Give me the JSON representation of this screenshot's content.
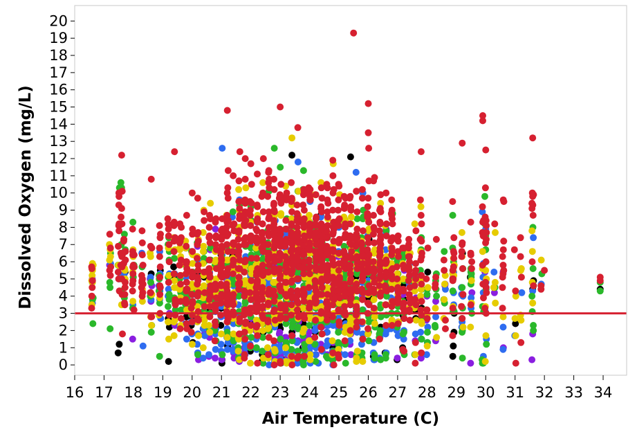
{
  "chart_data": {
    "type": "scatter",
    "title": "",
    "xlabel": "Air Temperature (C)",
    "ylabel": "Dissolved Oxygen (mg/L)",
    "xlim": [
      16,
      34.8
    ],
    "ylim": [
      -0.6,
      20.9
    ],
    "x_ticks": [
      "16",
      "17",
      "18",
      "19",
      "20",
      "21",
      "22",
      "23",
      "24",
      "25",
      "26",
      "27",
      "28",
      "29",
      "30",
      "31",
      "32",
      "33",
      "34"
    ],
    "y_ticks": [
      "0",
      "1",
      "2",
      "3",
      "4",
      "5",
      "6",
      "7",
      "8",
      "9",
      "10",
      "11",
      "12",
      "13",
      "14",
      "15",
      "16",
      "17",
      "18",
      "19",
      "20"
    ],
    "grid": false,
    "legend": "none",
    "reference_line": {
      "y": 3,
      "color": "#d62030"
    },
    "group_colors": [
      "#d62030",
      "#e6cc00",
      "#2ab82a",
      "#2e6cf0",
      "#8a1ee0",
      "#000000"
    ],
    "group_weights": [
      0.35,
      0.22,
      0.2,
      0.12,
      0.06,
      0.05
    ],
    "x_columns": [
      16.6,
      17.2,
      17.5,
      17.6,
      17.7,
      18.0,
      18.3,
      18.6,
      18.9,
      19.2,
      19.4,
      19.6,
      19.8,
      20.0,
      20.2,
      20.4,
      20.6,
      20.8,
      21.0,
      21.2,
      21.4,
      21.6,
      21.8,
      22.0,
      22.2,
      22.4,
      22.6,
      22.8,
      23.0,
      23.2,
      23.4,
      23.6,
      23.8,
      24.0,
      24.2,
      24.4,
      24.6,
      24.8,
      25.0,
      25.2,
      25.4,
      25.6,
      25.8,
      26.0,
      26.2,
      26.4,
      26.6,
      26.8,
      27.0,
      27.2,
      27.4,
      27.6,
      27.8,
      28.0,
      28.3,
      28.6,
      28.9,
      29.2,
      29.5,
      29.9,
      30.0,
      30.3,
      30.6,
      31.0,
      31.2,
      31.6,
      31.9,
      33.9
    ],
    "column_counts": [
      20,
      15,
      18,
      22,
      18,
      25,
      18,
      22,
      26,
      30,
      28,
      30,
      32,
      40,
      40,
      40,
      45,
      45,
      55,
      60,
      60,
      65,
      70,
      70,
      75,
      75,
      80,
      80,
      80,
      85,
      85,
      85,
      85,
      85,
      85,
      80,
      80,
      75,
      75,
      70,
      70,
      65,
      60,
      60,
      55,
      50,
      45,
      45,
      40,
      35,
      30,
      30,
      35,
      20,
      15,
      15,
      35,
      25,
      20,
      20,
      30,
      8,
      15,
      8,
      8,
      25,
      5,
      3
    ],
    "column_centers": [
      4.5,
      5.5,
      6.0,
      6.5,
      5.5,
      5.0,
      5.0,
      5.0,
      5.0,
      5.0,
      5.0,
      5.0,
      5.0,
      4.5,
      4.5,
      4.5,
      4.5,
      4.5,
      5.0,
      5.0,
      5.0,
      5.0,
      5.0,
      5.0,
      5.0,
      5.0,
      5.0,
      5.0,
      5.0,
      5.0,
      5.0,
      5.0,
      5.0,
      5.0,
      5.0,
      5.0,
      5.0,
      5.0,
      5.0,
      5.0,
      5.0,
      5.0,
      5.0,
      5.0,
      5.0,
      5.0,
      5.0,
      5.0,
      4.5,
      4.5,
      4.5,
      4.5,
      4.5,
      4.0,
      4.0,
      4.0,
      4.5,
      4.5,
      4.5,
      5.0,
      5.0,
      5.0,
      4.5,
      4.5,
      4.5,
      5.0,
      5.0,
      4.7
    ],
    "column_spreads": [
      1.2,
      1.6,
      2.2,
      2.0,
      1.6,
      1.6,
      1.6,
      1.8,
      1.8,
      2.0,
      2.0,
      2.0,
      2.0,
      2.0,
      2.0,
      2.0,
      2.2,
      2.2,
      2.5,
      2.6,
      2.6,
      2.6,
      2.6,
      2.6,
      2.6,
      2.6,
      2.8,
      2.8,
      2.8,
      2.8,
      2.8,
      2.8,
      2.8,
      2.8,
      2.8,
      2.6,
      2.6,
      2.6,
      2.6,
      2.5,
      2.5,
      2.4,
      2.4,
      2.4,
      2.4,
      2.2,
      2.2,
      2.2,
      2.0,
      2.0,
      2.0,
      2.0,
      2.2,
      1.8,
      1.6,
      1.6,
      2.0,
      2.0,
      2.2,
      2.4,
      2.5,
      1.6,
      2.0,
      1.6,
      1.6,
      2.2,
      1.0,
      0.3
    ],
    "outliers": [
      {
        "x": 25.5,
        "y": 19.3,
        "group": 0
      },
      {
        "x": 26.0,
        "y": 15.2,
        "group": 0
      },
      {
        "x": 23.0,
        "y": 15.0,
        "group": 0
      },
      {
        "x": 21.2,
        "y": 14.8,
        "group": 0
      },
      {
        "x": 29.9,
        "y": 14.5,
        "group": 0
      },
      {
        "x": 29.9,
        "y": 14.2,
        "group": 0
      },
      {
        "x": 23.6,
        "y": 13.8,
        "group": 0
      },
      {
        "x": 31.6,
        "y": 13.2,
        "group": 0
      },
      {
        "x": 26.0,
        "y": 13.5,
        "group": 0
      },
      {
        "x": 29.2,
        "y": 12.9,
        "group": 0
      },
      {
        "x": 30.0,
        "y": 12.5,
        "group": 0
      },
      {
        "x": 17.6,
        "y": 12.2,
        "group": 0
      },
      {
        "x": 27.8,
        "y": 12.4,
        "group": 0
      },
      {
        "x": 19.4,
        "y": 12.4,
        "group": 0
      },
      {
        "x": 23.4,
        "y": 13.2,
        "group": 1
      },
      {
        "x": 23.4,
        "y": 12.2,
        "group": 5
      },
      {
        "x": 22.8,
        "y": 12.6,
        "group": 2
      },
      {
        "x": 30.6,
        "y": 9.6,
        "group": 0
      },
      {
        "x": 31.6,
        "y": 9.8,
        "group": 0
      },
      {
        "x": 33.9,
        "y": 4.4,
        "group": 5
      },
      {
        "x": 33.9,
        "y": 4.9,
        "group": 0
      },
      {
        "x": 32.0,
        "y": 5.5,
        "group": 0
      },
      {
        "x": 31.2,
        "y": 1.3,
        "group": 0
      },
      {
        "x": 27.6,
        "y": 0.1,
        "group": 0
      },
      {
        "x": 24.3,
        "y": 0.1,
        "group": 3
      }
    ]
  }
}
